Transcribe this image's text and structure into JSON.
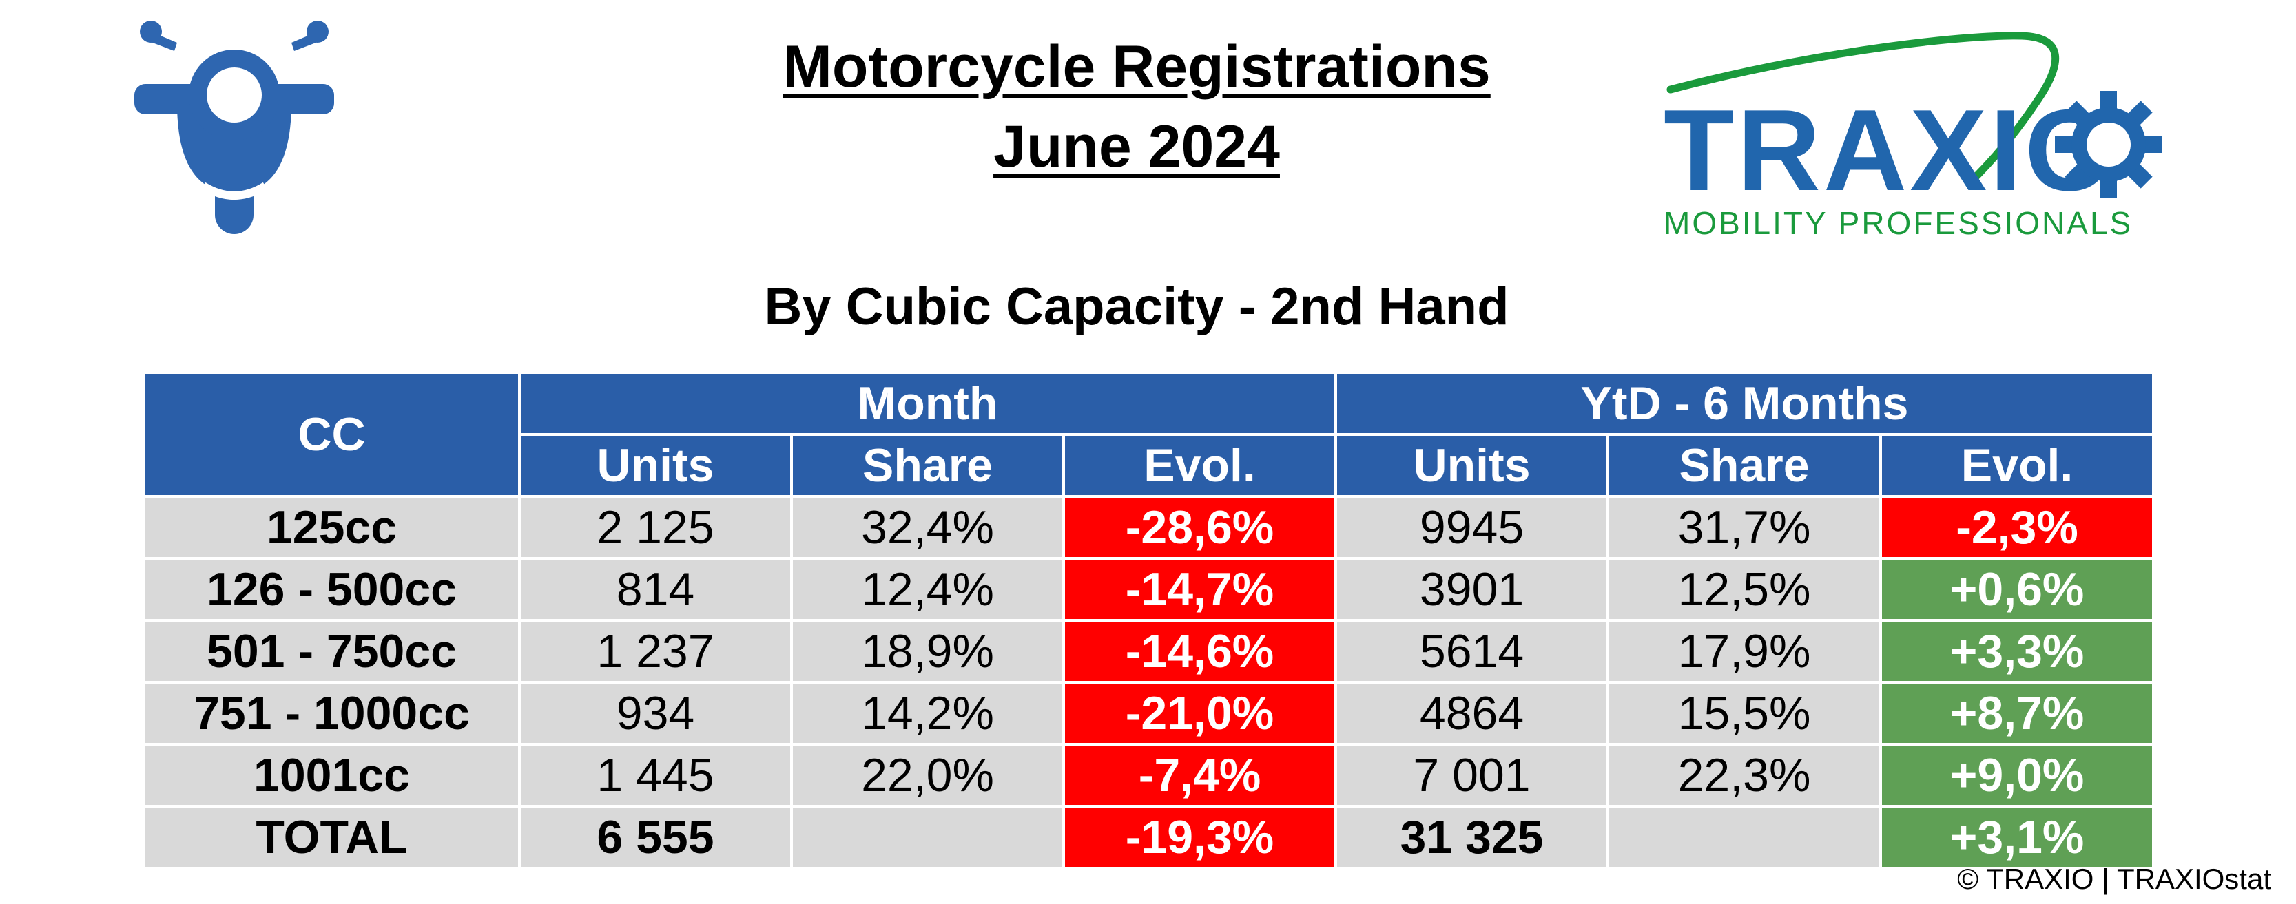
{
  "title": "Motorcycle Registrations",
  "subtitle_date": "June 2024",
  "section": "By Cubic Capacity - 2nd Hand",
  "logo": {
    "name": "TRAXIO",
    "tagline": "MOBILITY PROFESSIONALS",
    "icon": "gear-icon"
  },
  "header": {
    "cc": "CC",
    "month": "Month",
    "ytd": "YtD - 6 Months",
    "units": "Units",
    "share": "Share",
    "evol": "Evol."
  },
  "rows": [
    {
      "label": "125cc",
      "m_units": "2 125",
      "m_share": "32,4%",
      "m_evol": "-28,6%",
      "y_units": "9945",
      "y_share": "31,7%",
      "y_evol": "-2,3%"
    },
    {
      "label": "126 - 500cc",
      "m_units": "814",
      "m_share": "12,4%",
      "m_evol": "-14,7%",
      "y_units": "3901",
      "y_share": "12,5%",
      "y_evol": "+0,6%"
    },
    {
      "label": "501 - 750cc",
      "m_units": "1 237",
      "m_share": "18,9%",
      "m_evol": "-14,6%",
      "y_units": "5614",
      "y_share": "17,9%",
      "y_evol": "+3,3%"
    },
    {
      "label": "751 - 1000cc",
      "m_units": "934",
      "m_share": "14,2%",
      "m_evol": "-21,0%",
      "y_units": "4864",
      "y_share": "15,5%",
      "y_evol": "+8,7%"
    },
    {
      "label": "1001cc",
      "m_units": "1 445",
      "m_share": "22,0%",
      "m_evol": "-7,4%",
      "y_units": "7 001",
      "y_share": "22,3%",
      "y_evol": "+9,0%"
    }
  ],
  "total": {
    "label": "TOTAL",
    "m_units": "6 555",
    "m_evol": "-19,3%",
    "y_units": "31 325",
    "y_evol": "+3,1%"
  },
  "copyright": "© TRAXIO | TRAXIOstat",
  "colors": {
    "header_blue": "#2a5ea8",
    "negative": "#ff0000",
    "positive": "#5fa055",
    "cell_grey": "#d9d9d9",
    "logo_green": "#1a9a3c",
    "logo_blue": "#2166ad"
  }
}
